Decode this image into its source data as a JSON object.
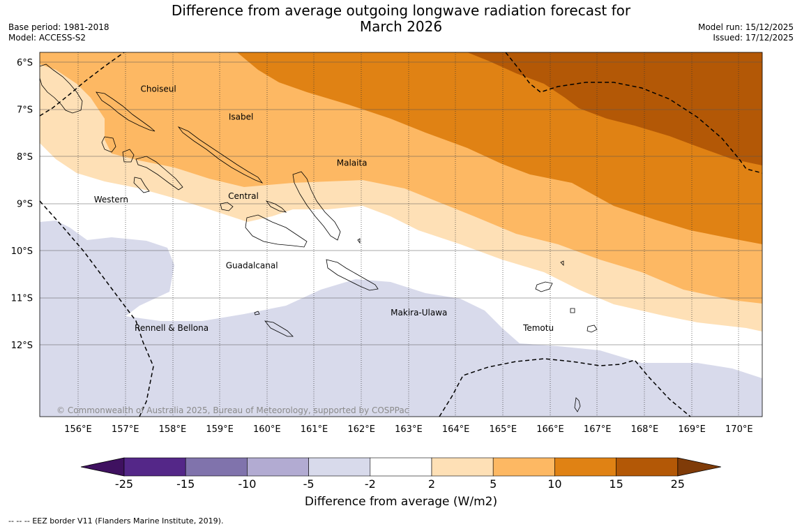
{
  "title_line1": "Difference from average outgoing longwave radiation forecast for",
  "title_line2": "March 2026",
  "base_period": "Base period: 1981-2018",
  "model": "Model: ACCESS-S2",
  "model_run": "Model run: 15/12/2025",
  "issued": "Issued: 17/12/2025",
  "copyright": "© Commonwealth of Australia 2025, Bureau of Meteorology, supported by COSPPac",
  "lat_labels": [
    "6°S",
    "7°S",
    "8°S",
    "9°S",
    "10°S",
    "11°S",
    "12°S"
  ],
  "lon_labels": [
    "156°E",
    "157°E",
    "158°E",
    "159°E",
    "160°E",
    "161°E",
    "162°E",
    "163°E",
    "164°E",
    "165°E",
    "166°E",
    "167°E",
    "168°E",
    "169°E",
    "170°E"
  ],
  "regions": [
    {
      "name": "Choiseul",
      "lon": 157.7,
      "lat": -6.63
    },
    {
      "name": "Isabel",
      "lon": 159.45,
      "lat": -7.22
    },
    {
      "name": "Malaita",
      "lon": 161.8,
      "lat": -8.2
    },
    {
      "name": "Central",
      "lon": 159.5,
      "lat": -8.9
    },
    {
      "name": "Western",
      "lon": 156.7,
      "lat": -8.98
    },
    {
      "name": "Guadalcanal",
      "lon": 159.68,
      "lat": -10.38
    },
    {
      "name": "Makira-Ulawa",
      "lon": 163.22,
      "lat": -11.38
    },
    {
      "name": "Rennell & Bellona",
      "lon": 157.98,
      "lat": -11.7
    },
    {
      "name": "Temotu",
      "lon": 165.75,
      "lat": -11.7
    }
  ],
  "colorbar": {
    "label": "Difference from average (W/m2)",
    "ticks": [
      "-25",
      "-15",
      "-10",
      "-5",
      "-2",
      "2",
      "5",
      "10",
      "15",
      "25"
    ],
    "colors": [
      "#3f1160",
      "#542788",
      "#8073ac",
      "#b2abd2",
      "#d8daeb",
      "#ffffff",
      "#fee0b6",
      "#fdb863",
      "#e08214",
      "#b35806",
      "#7f3b08"
    ]
  },
  "legend": {
    "symbol": "--  --  --",
    "text": "EEZ border V11 (Flanders Marine Institute, 2019)."
  }
}
